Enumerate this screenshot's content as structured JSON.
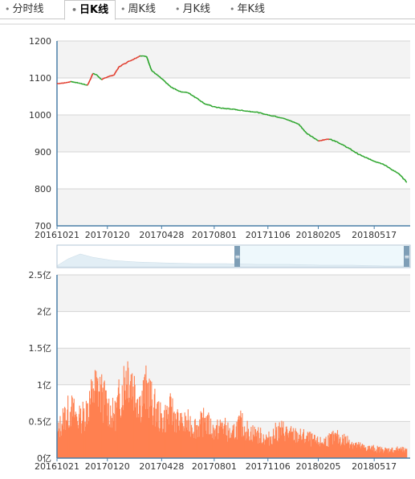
{
  "tabs": [
    {
      "label": "分时线",
      "active": false
    },
    {
      "label": "日K线",
      "active": true
    },
    {
      "label": "周K线",
      "active": false
    },
    {
      "label": "月K线",
      "active": false
    },
    {
      "label": "年K线",
      "active": false
    }
  ],
  "chart_data": [
    {
      "type": "line",
      "title": "",
      "xlabel": "",
      "ylabel": "",
      "ylim": [
        700,
        1200
      ],
      "yticks": [
        "1200",
        "1100",
        "1000",
        "900",
        "800",
        "700"
      ],
      "xticks": [
        "20161021",
        "20170120",
        "20170428",
        "20170801",
        "20171106",
        "20180205",
        "20180517"
      ],
      "up_color": "#e03020",
      "down_color": "#20a020",
      "grid": true,
      "series": [
        {
          "x": [
            "20161021",
            "20161101",
            "20161115",
            "20161201",
            "20161215",
            "20161225",
            "20170101",
            "20170110",
            "20170120",
            "20170201",
            "20170210",
            "20170225",
            "20170310",
            "20170320",
            "20170401",
            "20170410",
            "20170428",
            "20170515",
            "20170601",
            "20170615",
            "20170701",
            "20170715",
            "20170801",
            "20170815",
            "20170901",
            "20170915",
            "20171001",
            "20171015",
            "20171106",
            "20171120",
            "20171201",
            "20171215",
            "20180101",
            "20180115",
            "20180205",
            "20180225",
            "20180310",
            "20180401",
            "20180417",
            "20180501",
            "20180517",
            "20180601",
            "20180615",
            "20180701",
            "20180715"
          ],
          "values": [
            1085,
            1086,
            1090,
            1086,
            1080,
            1112,
            1108,
            1095,
            1103,
            1108,
            1130,
            1143,
            1152,
            1160,
            1158,
            1120,
            1098,
            1075,
            1063,
            1060,
            1045,
            1030,
            1022,
            1018,
            1016,
            1013,
            1010,
            1008,
            1000,
            996,
            992,
            985,
            975,
            950,
            930,
            935,
            928,
            910,
            895,
            885,
            875,
            868,
            855,
            840,
            818
          ]
        }
      ]
    },
    {
      "type": "bar",
      "title": "",
      "xlabel": "",
      "ylabel": "",
      "ylim": [
        0,
        2.5
      ],
      "yticks": [
        "2.5亿",
        "2亿",
        "1.5亿",
        "1亿",
        "0.5亿",
        "0亿"
      ],
      "xticks": [
        "20161021",
        "20170120",
        "20170428",
        "20170801",
        "20171106",
        "20180205",
        "20180517"
      ],
      "bar_color": "#ff8050",
      "grid": true,
      "series": [
        {
          "name": "",
          "unit": "亿",
          "x": [
            "20161021",
            "20161101",
            "20161115",
            "20161201",
            "20161215",
            "20161225",
            "20170101",
            "20170110",
            "20170120",
            "20170201",
            "20170210",
            "20170225",
            "20170310",
            "20170320",
            "20170401",
            "20170410",
            "20170428",
            "20170515",
            "20170601",
            "20170615",
            "20170701",
            "20170715",
            "20170801",
            "20170815",
            "20170901",
            "20170915",
            "20171001",
            "20171015",
            "20171106",
            "20171120",
            "20171201",
            "20171215",
            "20180101",
            "20180115",
            "20180205",
            "20180225",
            "20180310",
            "20180401",
            "20180417",
            "20180501",
            "20180517",
            "20180601",
            "20180615",
            "20180701",
            "20180715"
          ],
          "values": [
            0.35,
            0.62,
            0.7,
            0.55,
            0.75,
            0.95,
            1.05,
            0.9,
            0.75,
            0.6,
            0.88,
            1.32,
            1.0,
            0.85,
            1.02,
            0.8,
            0.55,
            0.7,
            0.48,
            0.52,
            0.45,
            0.55,
            0.38,
            0.48,
            0.32,
            0.52,
            0.4,
            0.35,
            0.28,
            0.38,
            0.42,
            0.35,
            0.32,
            0.3,
            0.22,
            0.28,
            0.3,
            0.25,
            0.18,
            0.15,
            0.14,
            0.12,
            0.12,
            0.13,
            0.1
          ]
        }
      ]
    }
  ]
}
